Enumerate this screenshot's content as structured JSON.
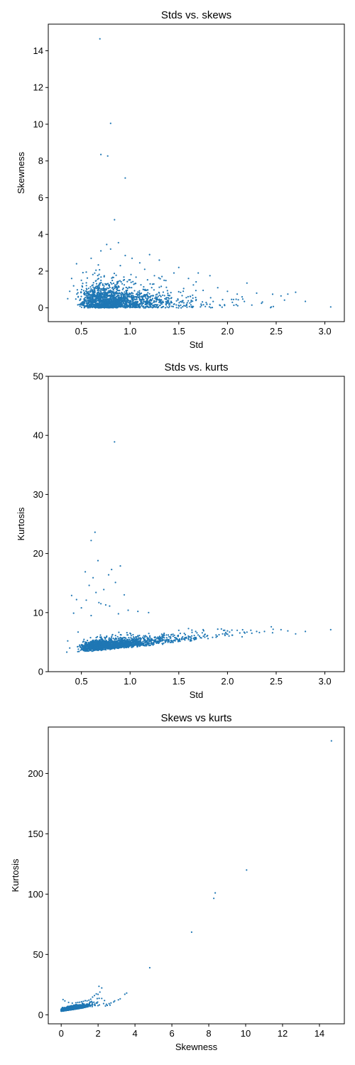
{
  "chart_data": [
    {
      "type": "scatter",
      "title": "Stds vs. skews",
      "xlabel": "Std",
      "ylabel": "Skewness",
      "xlim": [
        0.16,
        3.2
      ],
      "ylim": [
        -0.75,
        15.45
      ],
      "xticks": [
        0.5,
        1.0,
        1.5,
        2.0,
        2.5,
        3.0
      ],
      "xtick_labels": [
        "0.5",
        "1.0",
        "1.5",
        "2.0",
        "2.5",
        "3.0"
      ],
      "yticks": [
        0,
        2,
        4,
        6,
        8,
        10,
        12,
        14
      ],
      "ytick_labels": [
        "0",
        "2",
        "4",
        "6",
        "8",
        "10",
        "12",
        "14"
      ],
      "grid": false,
      "color": "#1f77b4",
      "series": [
        {
          "points": [
            [
              0.69,
              14.65
            ],
            [
              0.8,
              10.05
            ],
            [
              0.7,
              8.35
            ],
            [
              0.77,
              8.27
            ],
            [
              0.95,
              7.07
            ],
            [
              0.84,
              4.8
            ],
            [
              0.76,
              3.45
            ],
            [
              0.88,
              3.55
            ],
            [
              0.7,
              3.1
            ],
            [
              0.8,
              3.2
            ],
            [
              0.95,
              2.85
            ],
            [
              1.02,
              2.7
            ],
            [
              1.2,
              2.9
            ],
            [
              0.6,
              2.7
            ],
            [
              1.1,
              2.45
            ],
            [
              1.3,
              2.6
            ],
            [
              1.5,
              2.2
            ],
            [
              1.45,
              1.9
            ],
            [
              0.45,
              2.4
            ],
            [
              0.55,
              1.95
            ],
            [
              1.6,
              1.6
            ],
            [
              1.7,
              1.9
            ],
            [
              1.82,
              1.75
            ],
            [
              1.9,
              1.1
            ],
            [
              2.0,
              0.9
            ],
            [
              2.1,
              0.75
            ],
            [
              2.2,
              1.35
            ],
            [
              2.3,
              0.8
            ],
            [
              2.35,
              0.25
            ],
            [
              2.45,
              0.05
            ],
            [
              2.55,
              0.65
            ],
            [
              2.62,
              0.75
            ],
            [
              2.7,
              0.85
            ],
            [
              2.8,
              0.35
            ],
            [
              3.06,
              0.05
            ],
            [
              1.95,
              0.45
            ],
            [
              2.05,
              0.3
            ],
            [
              2.15,
              0.6
            ],
            [
              2.25,
              0.15
            ],
            [
              1.75,
              0.95
            ],
            [
              1.65,
              1.25
            ],
            [
              1.55,
              1.05
            ],
            [
              1.35,
              1.5
            ],
            [
              1.25,
              1.75
            ],
            [
              1.15,
              2.1
            ],
            [
              0.9,
              2.3
            ],
            [
              0.65,
              2.05
            ],
            [
              0.5,
              1.5
            ],
            [
              0.4,
              1.6
            ],
            [
              0.38,
              0.9
            ],
            [
              0.42,
              1.2
            ],
            [
              0.36,
              0.5
            ]
          ]
        }
      ]
    },
    {
      "type": "scatter",
      "title": "Stds vs. kurts",
      "xlabel": "Std",
      "ylabel": "Kurtosis",
      "xlim": [
        0.16,
        3.2
      ],
      "ylim": [
        0,
        50
      ],
      "xticks": [
        0.5,
        1.0,
        1.5,
        2.0,
        2.5,
        3.0
      ],
      "xtick_labels": [
        "0.5",
        "1.0",
        "1.5",
        "2.0",
        "2.5",
        "3.0"
      ],
      "yticks": [
        0,
        10,
        20,
        30,
        40,
        50
      ],
      "ytick_labels": [
        "0",
        "10",
        "20",
        "30",
        "40",
        "50"
      ],
      "grid": false,
      "color": "#1f77b4",
      "series": [
        {
          "points": [
            [
              0.84,
              38.9
            ],
            [
              0.64,
              23.6
            ],
            [
              0.6,
              22.2
            ],
            [
              0.67,
              18.8
            ],
            [
              0.9,
              17.9
            ],
            [
              0.81,
              17.3
            ],
            [
              0.54,
              16.9
            ],
            [
              0.78,
              16.4
            ],
            [
              0.62,
              15.9
            ],
            [
              0.85,
              15.1
            ],
            [
              0.58,
              14.6
            ],
            [
              0.73,
              13.9
            ],
            [
              0.65,
              13.4
            ],
            [
              0.4,
              12.9
            ],
            [
              0.94,
              13.0
            ],
            [
              0.45,
              12.2
            ],
            [
              0.55,
              12.1
            ],
            [
              0.7,
              11.5
            ],
            [
              0.68,
              11.7
            ],
            [
              0.75,
              11.3
            ],
            [
              0.79,
              11.1
            ],
            [
              0.5,
              10.8
            ],
            [
              0.98,
              10.4
            ],
            [
              1.08,
              10.2
            ],
            [
              1.19,
              10.0
            ],
            [
              0.88,
              9.8
            ],
            [
              0.6,
              9.5
            ],
            [
              0.42,
              9.9
            ],
            [
              1.9,
              7.2
            ],
            [
              2.0,
              6.9
            ],
            [
              2.1,
              7.0
            ],
            [
              2.2,
              6.7
            ],
            [
              2.3,
              6.8
            ],
            [
              2.38,
              6.8
            ],
            [
              2.45,
              7.6
            ],
            [
              2.55,
              7.1
            ],
            [
              2.62,
              6.9
            ],
            [
              2.7,
              6.4
            ],
            [
              2.8,
              6.8
            ],
            [
              3.06,
              7.1
            ],
            [
              2.15,
              5.9
            ],
            [
              2.25,
              6.5
            ],
            [
              1.8,
              5.6
            ],
            [
              1.75,
              7.1
            ],
            [
              1.6,
              7.3
            ],
            [
              1.5,
              7.0
            ],
            [
              1.95,
              6.4
            ],
            [
              0.35,
              3.3
            ],
            [
              0.38,
              4.0
            ],
            [
              0.36,
              5.2
            ]
          ]
        }
      ]
    },
    {
      "type": "scatter",
      "title": "Skews vs kurts",
      "xlabel": "Skewness",
      "ylabel": "Kurtosis",
      "xlim": [
        -0.7,
        15.35
      ],
      "ylim": [
        -7.5,
        238.5
      ],
      "xticks": [
        0,
        2,
        4,
        6,
        8,
        10,
        12,
        14
      ],
      "xtick_labels": [
        "0",
        "2",
        "4",
        "6",
        "8",
        "10",
        "12",
        "14"
      ],
      "yticks": [
        0,
        50,
        100,
        150,
        200
      ],
      "ytick_labels": [
        "0",
        "50",
        "100",
        "150",
        "200"
      ],
      "grid": false,
      "color": "#1f77b4",
      "series": [
        {
          "points": [
            [
              14.65,
              227.0
            ],
            [
              10.05,
              120.0
            ],
            [
              8.35,
              101.0
            ],
            [
              8.27,
              96.5
            ],
            [
              7.07,
              68.5
            ],
            [
              4.8,
              39.0
            ],
            [
              3.55,
              18.0
            ],
            [
              3.45,
              17.0
            ],
            [
              3.2,
              13.2
            ],
            [
              3.1,
              12.4
            ],
            [
              2.9,
              11.5
            ],
            [
              2.85,
              10.6
            ],
            [
              2.7,
              9.8
            ],
            [
              2.6,
              9.2
            ],
            [
              2.45,
              8.7
            ],
            [
              2.3,
              9.3
            ],
            [
              2.2,
              13.5
            ],
            [
              2.35,
              11.8
            ],
            [
              2.05,
              23.6
            ],
            [
              2.2,
              22.2
            ],
            [
              2.1,
              18.8
            ],
            [
              2.0,
              16.9
            ],
            [
              1.9,
              17.3
            ],
            [
              1.8,
              15.9
            ],
            [
              1.7,
              14.6
            ],
            [
              1.95,
              13.4
            ],
            [
              1.6,
              12.9
            ],
            [
              1.5,
              12.1
            ],
            [
              1.4,
              11.5
            ],
            [
              1.3,
              11.7
            ],
            [
              1.2,
              11.1
            ],
            [
              1.1,
              10.8
            ],
            [
              1.0,
              10.4
            ],
            [
              0.9,
              10.2
            ],
            [
              0.8,
              9.9
            ],
            [
              0.6,
              9.6
            ],
            [
              0.4,
              10.3
            ],
            [
              0.2,
              11.5
            ],
            [
              0.1,
              12.6
            ],
            [
              2.5,
              7.8
            ],
            [
              2.4,
              7.3
            ],
            [
              2.65,
              8.0
            ]
          ]
        }
      ]
    }
  ]
}
